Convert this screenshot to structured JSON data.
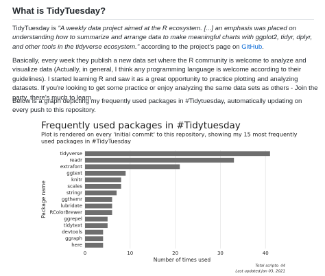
{
  "heading": "What is TidyTuesday?",
  "paragraph_1": {
    "lead": "TidyTuesday is",
    "quote": "\"A weekly data project aimed at the R ecosystem. [...] an emphasis was placed on understanding how to summarize and arrange data to make meaningful charts with ggplot2, tidyr, dplyr, and other tools in the tidyverse ecosystem.\"",
    "trail": "according to the project's page on",
    "link": "GitHub",
    "end": "."
  },
  "paragraph_2": "Basically, every week they publish a new data set where the R community is welcome to analyze and visualize data (Actually, in general, I think any programming language is welcome according to their guidelines). I started learning R and saw it as a great opportunity to practice plotting and analyzing datasets. If you're looking to get some practice or enjoy analyzing the same data sets as others - Join the party, there's much to learn.",
  "paragraph_3": "Below is a graph depicting my frequently used packages in #Tidytuesday, automatically updating on every push to this repository.",
  "chart_data": {
    "type": "bar",
    "orientation": "horizontal",
    "title": "Frequently used packages in #Tidytuesday",
    "subtitle": [
      "Plot is rendered on every 'initial commit' to this repository, showing my 15 most frequently",
      "used packages in #TidyTuesday"
    ],
    "x_label": "Number of times used",
    "y_label": "Package name",
    "caption": [
      "Total scripts: 44",
      "Last updated:Jan 03, 2021"
    ],
    "categories": [
      "tidyverse",
      "readr",
      "extrafont",
      "ggtext",
      "knitr",
      "scales",
      "stringr",
      "ggthemr",
      "lubridate",
      "RColorBrewer",
      "ggrepel",
      "tidytext",
      "devtools",
      "ggraph",
      "here"
    ],
    "values": [
      41,
      33,
      21,
      9,
      8,
      8,
      7,
      6,
      6,
      6,
      5,
      5,
      4,
      4,
      4
    ],
    "color": "#6e6e6e",
    "xlim": [
      0,
      43
    ],
    "xticks": [
      0,
      10,
      20,
      30,
      40
    ],
    "grid": true
  }
}
